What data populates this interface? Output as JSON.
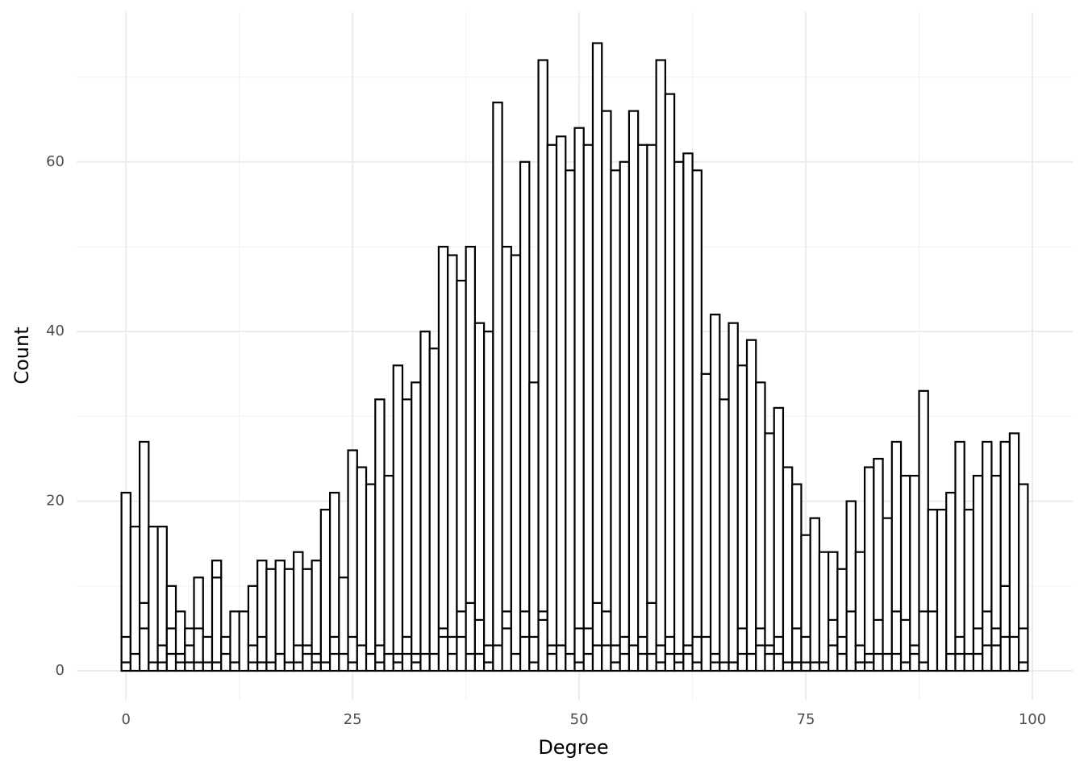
{
  "chart_data": {
    "type": "histogram",
    "x_label": "Degree",
    "y_label": "Count",
    "bins": [
      -0.5,
      0.5,
      1.5,
      2.5,
      3.5,
      4.5,
      5.5,
      6.5,
      7.5,
      8.5,
      9.5,
      10.5,
      11.5,
      12.5,
      13.5,
      14.5,
      15.5,
      16.5,
      17.5,
      18.5,
      19.5,
      20.5,
      21.5,
      22.5,
      23.5,
      24.5,
      25.5,
      26.5,
      27.5,
      28.5,
      29.5,
      30.5,
      31.5,
      32.5,
      33.5,
      34.5,
      35.5,
      36.5,
      37.5,
      38.5,
      39.5,
      40.5,
      41.5,
      42.5,
      43.5,
      44.5,
      45.5,
      46.5,
      47.5,
      48.5,
      49.5,
      50.5,
      51.5,
      52.5,
      53.5,
      54.5,
      55.5,
      56.5,
      57.5,
      58.5,
      59.5,
      60.5,
      61.5,
      62.5,
      63.5,
      64.5,
      65.5,
      66.5,
      67.5,
      68.5,
      69.5,
      70.5,
      71.5,
      72.5,
      73.5,
      74.5,
      75.5,
      76.5,
      77.5,
      78.5,
      79.5,
      80.5,
      81.5,
      82.5,
      83.5,
      84.5,
      85.5,
      86.5,
      87.5,
      88.5,
      89.5,
      90.5,
      91.5,
      92.5,
      93.5,
      94.5,
      95.5,
      96.5,
      97.5,
      98.5,
      99.5
    ],
    "series": [
      {
        "color": "#ffffff",
        "values": [
          1,
          0,
          5,
          1,
          1,
          2,
          1,
          1,
          1,
          1,
          1,
          0,
          1,
          0,
          1,
          1,
          1,
          0,
          0,
          1,
          2,
          1,
          1,
          2,
          2,
          1,
          0,
          0,
          1,
          0,
          1,
          2,
          1,
          0,
          0,
          4,
          2,
          4,
          2,
          2,
          1,
          0,
          5,
          0,
          4,
          1,
          6,
          2,
          0,
          0,
          1,
          2,
          3,
          3,
          1,
          2,
          3,
          2,
          2,
          1,
          2,
          1,
          2,
          1,
          0,
          1,
          1,
          1,
          2,
          2,
          3,
          2,
          2,
          0,
          1,
          1,
          1,
          1,
          3,
          2,
          0,
          1,
          1,
          2,
          2,
          2,
          1,
          2,
          1,
          0,
          0,
          0,
          2,
          2,
          2,
          3,
          3,
          4,
          4,
          1
        ]
      },
      {
        "color": "#ffffff",
        "values": [
          3,
          2,
          3,
          0,
          2,
          3,
          1,
          2,
          4,
          0,
          10,
          2,
          0,
          0,
          2,
          3,
          0,
          2,
          1,
          2,
          1,
          1,
          0,
          2,
          9,
          3,
          3,
          2,
          2,
          2,
          1,
          2,
          1,
          2,
          2,
          1,
          2,
          3,
          6,
          4,
          2,
          3,
          2,
          2,
          3,
          3,
          1,
          1,
          3,
          2,
          4,
          3,
          5,
          4,
          2,
          2,
          0,
          2,
          6,
          2,
          2,
          1,
          1,
          3,
          4,
          1,
          0,
          0,
          3,
          0,
          2,
          1,
          2,
          1,
          4,
          3,
          0,
          0,
          3,
          2,
          7,
          2,
          1,
          4,
          0,
          5,
          5,
          1,
          6,
          7,
          0,
          2,
          2,
          0,
          3,
          4,
          2,
          6,
          0,
          4
        ]
      },
      {
        "color": "#ffffff",
        "values": [
          17,
          15,
          19,
          16,
          14,
          5,
          5,
          2,
          6,
          3,
          2,
          2,
          6,
          7,
          7,
          9,
          11,
          11,
          11,
          11,
          9,
          11,
          18,
          17,
          0,
          22,
          21,
          20,
          29,
          21,
          34,
          28,
          32,
          38,
          36,
          45,
          45,
          39,
          42,
          35,
          37,
          64,
          43,
          47,
          53,
          30,
          65,
          59,
          60,
          57,
          59,
          57,
          66,
          59,
          56,
          56,
          63,
          58,
          54,
          69,
          64,
          58,
          58,
          55,
          31,
          40,
          31,
          40,
          31,
          37,
          29,
          25,
          27,
          23,
          17,
          12,
          17,
          13,
          8,
          8,
          13,
          11,
          22,
          19,
          16,
          20,
          17,
          20,
          26,
          12,
          19,
          19,
          23,
          17,
          18,
          20,
          18,
          17,
          24,
          17
        ]
      }
    ],
    "xlim": [
      -5.45,
      104.45
    ],
    "ylim": [
      -3.42,
      77.66
    ],
    "xticks": [
      0,
      25,
      50,
      75,
      100
    ],
    "yticks": [
      0,
      20,
      40,
      60
    ],
    "grid": true
  }
}
